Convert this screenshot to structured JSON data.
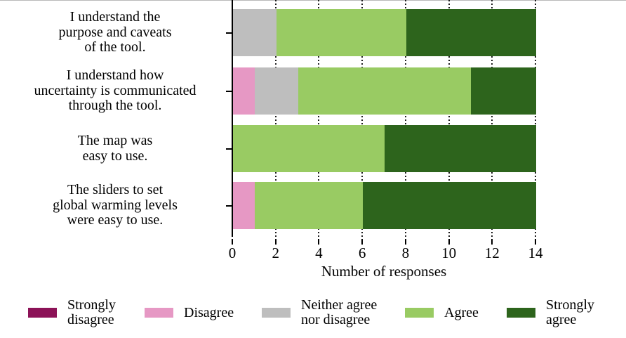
{
  "chart_data": {
    "type": "bar",
    "orientation": "horizontal",
    "stacked": true,
    "title": "",
    "xlabel": "Number of responses",
    "xticks": [
      0,
      2,
      4,
      6,
      8,
      10,
      12,
      14
    ],
    "xlim": [
      0,
      14
    ],
    "grid": "vertical-dotted",
    "legend_position": "bottom",
    "categories": [
      "I understand the\npurpose and caveats\nof the tool.",
      "I understand how\nuncertainty is communicated\nthrough the tool.",
      "The map was\neasy to use.",
      "The sliders to set\nglobal warming levels\nwere easy to use."
    ],
    "series": [
      {
        "name": "Strongly disagree",
        "color": "#8C1257",
        "values": [
          0,
          0,
          0,
          0
        ]
      },
      {
        "name": "Disagree",
        "color": "#E698C4",
        "values": [
          0,
          1,
          0,
          1
        ]
      },
      {
        "name": "Neither agree nor disagree",
        "color": "#BEBEBE",
        "values": [
          2,
          2,
          0,
          0
        ]
      },
      {
        "name": "Agree",
        "color": "#99CB63",
        "values": [
          6,
          8,
          7,
          5
        ]
      },
      {
        "name": "Strongly agree",
        "color": "#2D641C",
        "values": [
          6,
          3,
          7,
          8
        ]
      }
    ],
    "legend": [
      {
        "label": "Strongly\ndisagree",
        "color": "#8C1257"
      },
      {
        "label": "Disagree",
        "color": "#E698C4"
      },
      {
        "label": "Neither agree\nnor disagree",
        "color": "#BEBEBE"
      },
      {
        "label": "Agree",
        "color": "#99CB63"
      },
      {
        "label": "Strongly\nagree",
        "color": "#2D641C"
      }
    ],
    "axis_color": "#000000",
    "gridline_color": "#1f1f1f"
  }
}
